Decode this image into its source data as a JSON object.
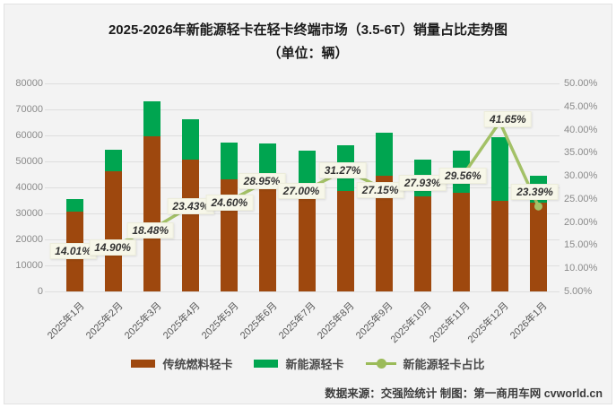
{
  "title": {
    "line1": "2025-2026年新能源轻卡在轻卡终端市场（3.5-6T）销量占比走势图",
    "line2": "（单位：辆）"
  },
  "footer": {
    "text": "数据来源：交强险统计 制图：第一商用车网 cvworld.cn"
  },
  "legend": [
    {
      "label": "传统燃料轻卡",
      "color": "#9E480E",
      "type": "bar"
    },
    {
      "label": "新能源轻卡",
      "color": "#00A550",
      "type": "bar"
    },
    {
      "label": "新能源轻卡占比",
      "color": "#9BBB59",
      "type": "line"
    }
  ],
  "colors": {
    "fuel_bar": "#9E480E",
    "nev_bar": "#00A550",
    "share_line": "#A3C167",
    "background": "#F3F3F3",
    "gridline": "#DEDEDE",
    "label_bg": "#F7F7E9"
  },
  "chart_data": {
    "type": "bar",
    "subtype": "stacked-bar-with-line",
    "title": "2025-2026年新能源轻卡在轻卡终端市场（3.5-6T）销量占比走势图（单位：辆）",
    "categories": [
      "2025年1月",
      "2025年2月",
      "2025年3月",
      "2025年4月",
      "2025年5月",
      "2025年6月",
      "2025年7月",
      "2025年8月",
      "2025年9月",
      "2025年10月",
      "2025年11月",
      "2025年12月",
      "2026年1月"
    ],
    "series": [
      {
        "name": "传统燃料轻卡",
        "type": "bar",
        "stack": "total",
        "axis": "left",
        "values": [
          30610,
          46290,
          59510,
          50770,
          43050,
          40430,
          39420,
          38700,
          44440,
          36470,
          38040,
          34660,
          34090
        ]
      },
      {
        "name": "新能源轻卡",
        "type": "bar",
        "stack": "total",
        "axis": "left",
        "values": [
          4990,
          8110,
          13490,
          15530,
          14050,
          16470,
          14580,
          17600,
          16560,
          14130,
          15960,
          24740,
          10410
        ]
      },
      {
        "name": "新能源轻卡占比",
        "type": "line",
        "axis": "right",
        "values": [
          14.01,
          14.9,
          18.48,
          23.43,
          24.6,
          28.95,
          27.0,
          31.27,
          27.15,
          27.93,
          29.56,
          41.65,
          23.39
        ],
        "labels": [
          "14.01%",
          "14.90%",
          "18.48%",
          "23.43%",
          "24.60%",
          "28.95%",
          "27.00%",
          "31.27%",
          "27.15%",
          "27.93%",
          "29.56%",
          "41.65%",
          "23.39%"
        ]
      }
    ],
    "left_axis": {
      "min": 0,
      "max": 80000,
      "step": 10000,
      "ticks": [
        "80000",
        "70000",
        "60000",
        "50000",
        "40000",
        "30000",
        "20000",
        "10000",
        "0"
      ]
    },
    "right_axis": {
      "min": 5,
      "max": 50,
      "step": 5,
      "ticks": [
        "50.00%",
        "45.00%",
        "40.00%",
        "35.00%",
        "30.00%",
        "25.00%",
        "20.00%",
        "15.00%",
        "10.00%",
        "5.00%"
      ]
    },
    "grid": "horizontal",
    "legend_position": "bottom"
  }
}
